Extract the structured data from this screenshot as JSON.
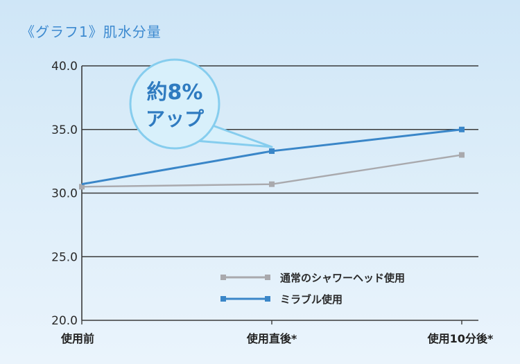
{
  "title": "《グラフ1》肌水分量",
  "callout": {
    "line1": "約8%",
    "line2": "アップ"
  },
  "colors": {
    "grid": "#3a3a3a",
    "normal_series": "#a9a9ad",
    "mirable_series": "#3a86c8",
    "callout_fill": "#d8f0fb",
    "callout_stroke": "#86cdee",
    "callout_text": "#2f7bc0",
    "title": "#3d8ad0"
  },
  "chart_data": {
    "type": "line",
    "title": "《グラフ1》肌水分量",
    "categories": [
      "使用前",
      "使用直後*",
      "使用10分後*"
    ],
    "y_ticks": [
      "40.0",
      "35.0",
      "30.0",
      "25.0",
      "20.0"
    ],
    "ylim": [
      20,
      40
    ],
    "grid": true,
    "legend_position": "bottom-right",
    "series": [
      {
        "name": "通常のシャワーヘッド使用",
        "values": [
          30.5,
          30.7,
          33.0
        ]
      },
      {
        "name": "ミラブル使用",
        "values": [
          30.7,
          33.3,
          35.0
        ]
      }
    ],
    "annotation": "約8% アップ"
  }
}
